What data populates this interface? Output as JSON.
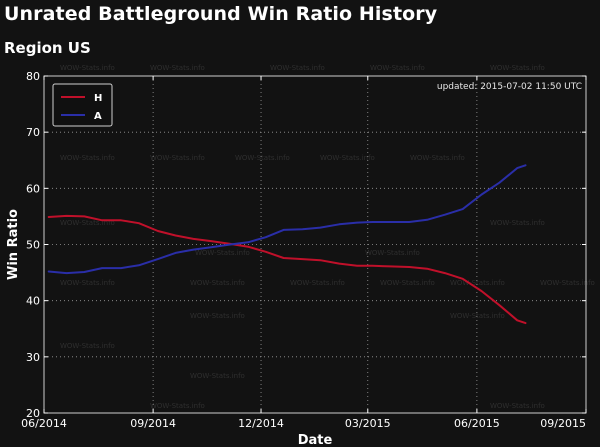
{
  "page": {
    "title": "Unrated Battleground Win Ratio History",
    "subtitle": "Region US"
  },
  "chart_data": {
    "type": "line",
    "title": "Unrated Battleground Win Ratio History",
    "subtitle": "Region US",
    "xlabel": "Date",
    "ylabel": "Win Ratio",
    "updated": "updated: 2015-07-02  11:50 UTC",
    "watermark": "WOW-Stats.info",
    "x_ticks": [
      "06/2014",
      "09/2014",
      "12/2014",
      "03/2015",
      "06/2015",
      "09/2015"
    ],
    "x_range": [
      "2014-06-01",
      "2015-09-01"
    ],
    "y_ticks": [
      20,
      30,
      40,
      50,
      60,
      70,
      80
    ],
    "ylim": [
      20,
      80
    ],
    "grid": true,
    "legend": "top-left",
    "series": [
      {
        "name": "H",
        "color": "#c0102a",
        "points": [
          [
            "2014-06-05",
            54.9
          ],
          [
            "2014-06-20",
            55.1
          ],
          [
            "2014-07-05",
            55.0
          ],
          [
            "2014-07-20",
            54.3
          ],
          [
            "2014-08-05",
            54.3
          ],
          [
            "2014-08-20",
            53.8
          ],
          [
            "2014-09-05",
            52.4
          ],
          [
            "2014-09-20",
            51.6
          ],
          [
            "2014-10-05",
            51.0
          ],
          [
            "2014-10-20",
            50.6
          ],
          [
            "2014-11-05",
            50.1
          ],
          [
            "2014-11-20",
            49.6
          ],
          [
            "2014-12-05",
            48.7
          ],
          [
            "2014-12-20",
            47.6
          ],
          [
            "2015-01-05",
            47.4
          ],
          [
            "2015-01-20",
            47.2
          ],
          [
            "2015-02-05",
            46.6
          ],
          [
            "2015-02-20",
            46.2
          ],
          [
            "2015-03-05",
            46.2
          ],
          [
            "2015-03-20",
            46.1
          ],
          [
            "2015-04-05",
            46.0
          ],
          [
            "2015-04-20",
            45.7
          ],
          [
            "2015-05-05",
            44.9
          ],
          [
            "2015-05-20",
            43.9
          ],
          [
            "2015-06-05",
            41.7
          ],
          [
            "2015-06-20",
            39.2
          ],
          [
            "2015-07-05",
            36.5
          ],
          [
            "2015-07-12",
            36.0
          ]
        ]
      },
      {
        "name": "A",
        "color": "#2a2ea8",
        "points": [
          [
            "2014-06-05",
            45.2
          ],
          [
            "2014-06-20",
            44.9
          ],
          [
            "2014-07-05",
            45.1
          ],
          [
            "2014-07-20",
            45.8
          ],
          [
            "2014-08-05",
            45.8
          ],
          [
            "2014-08-20",
            46.3
          ],
          [
            "2014-09-05",
            47.4
          ],
          [
            "2014-09-20",
            48.5
          ],
          [
            "2014-10-05",
            49.1
          ],
          [
            "2014-10-20",
            49.5
          ],
          [
            "2014-11-05",
            50.0
          ],
          [
            "2014-11-20",
            50.4
          ],
          [
            "2014-12-05",
            51.3
          ],
          [
            "2014-12-20",
            52.6
          ],
          [
            "2015-01-05",
            52.7
          ],
          [
            "2015-01-20",
            53.0
          ],
          [
            "2015-02-05",
            53.6
          ],
          [
            "2015-02-20",
            53.9
          ],
          [
            "2015-03-05",
            54.0
          ],
          [
            "2015-03-20",
            54.0
          ],
          [
            "2015-04-05",
            54.0
          ],
          [
            "2015-04-20",
            54.4
          ],
          [
            "2015-05-05",
            55.3
          ],
          [
            "2015-05-20",
            56.3
          ],
          [
            "2015-06-05",
            58.9
          ],
          [
            "2015-06-20",
            61.0
          ],
          [
            "2015-07-05",
            63.6
          ],
          [
            "2015-07-12",
            64.1
          ]
        ]
      }
    ]
  }
}
